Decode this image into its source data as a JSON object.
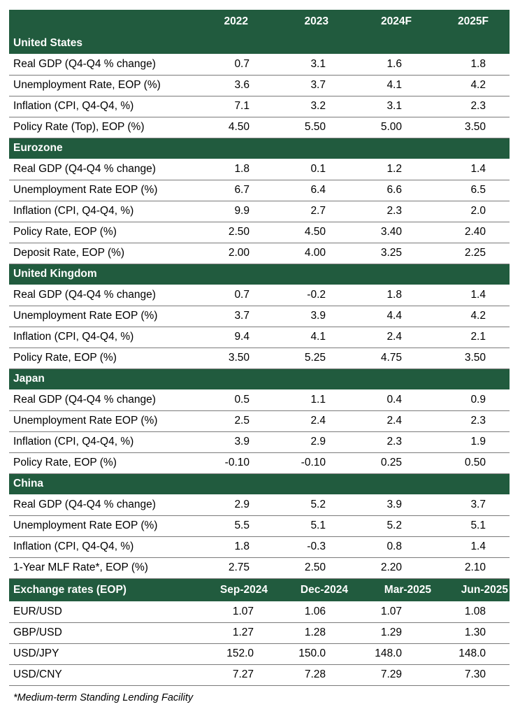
{
  "header": {
    "years": [
      "2022",
      "2023",
      "2024F",
      "2025F"
    ]
  },
  "sections": [
    {
      "name": "United States",
      "rows": [
        {
          "label": "Real GDP (Q4-Q4 % change)",
          "values": [
            "0.7",
            "3.1",
            "1.6",
            "1.8"
          ]
        },
        {
          "label": "Unemployment Rate, EOP (%)",
          "values": [
            "3.6",
            "3.7",
            "4.1",
            "4.2"
          ]
        },
        {
          "label": "Inflation (CPI, Q4-Q4, %)",
          "values": [
            "7.1",
            "3.2",
            "3.1",
            "2.3"
          ]
        },
        {
          "label": "Policy Rate (Top), EOP (%)",
          "values": [
            "4.50",
            "5.50",
            "5.00",
            "3.50"
          ]
        }
      ]
    },
    {
      "name": "Eurozone",
      "rows": [
        {
          "label": "Real GDP (Q4-Q4 % change)",
          "values": [
            "1.8",
            "0.1",
            "1.2",
            "1.4"
          ]
        },
        {
          "label": "Unemployment Rate EOP (%)",
          "values": [
            "6.7",
            "6.4",
            "6.6",
            "6.5"
          ]
        },
        {
          "label": "Inflation (CPI, Q4-Q4, %)",
          "values": [
            "9.9",
            "2.7",
            "2.3",
            "2.0"
          ]
        },
        {
          "label": "Policy Rate, EOP (%)",
          "values": [
            "2.50",
            "4.50",
            "3.40",
            "2.40"
          ]
        },
        {
          "label": "Deposit Rate, EOP (%)",
          "values": [
            "2.00",
            "4.00",
            "3.25",
            "2.25"
          ]
        }
      ]
    },
    {
      "name": "United Kingdom",
      "rows": [
        {
          "label": "Real GDP (Q4-Q4 % change)",
          "values": [
            "0.7",
            "-0.2",
            "1.8",
            "1.4"
          ]
        },
        {
          "label": "Unemployment Rate EOP (%)",
          "values": [
            "3.7",
            "3.9",
            "4.4",
            "4.2"
          ]
        },
        {
          "label": "Inflation (CPI, Q4-Q4, %)",
          "values": [
            "9.4",
            "4.1",
            "2.4",
            "2.1"
          ]
        },
        {
          "label": "Policy Rate, EOP (%)",
          "values": [
            "3.50",
            "5.25",
            "4.75",
            "3.50"
          ]
        }
      ]
    },
    {
      "name": "Japan",
      "rows": [
        {
          "label": "Real GDP (Q4-Q4 % change)",
          "values": [
            "0.5",
            "1.1",
            "0.4",
            "0.9"
          ]
        },
        {
          "label": "Unemployment Rate EOP (%)",
          "values": [
            "2.5",
            "2.4",
            "2.4",
            "2.3"
          ]
        },
        {
          "label": "Inflation (CPI, Q4-Q4, %)",
          "values": [
            "3.9",
            "2.9",
            "2.3",
            "1.9"
          ]
        },
        {
          "label": "Policy Rate, EOP (%)",
          "values": [
            "-0.10",
            "-0.10",
            "0.25",
            "0.50"
          ]
        }
      ]
    },
    {
      "name": "China",
      "rows": [
        {
          "label": "Real GDP (Q4-Q4 % change)",
          "values": [
            "2.9",
            "5.2",
            "3.9",
            "3.7"
          ]
        },
        {
          "label": "Unemployment Rate EOP (%)",
          "values": [
            "5.5",
            "5.1",
            "5.2",
            "5.1"
          ]
        },
        {
          "label": "Inflation (CPI, Q4-Q4, %)",
          "values": [
            "1.8",
            "-0.3",
            "0.8",
            "1.4"
          ]
        },
        {
          "label": "1-Year MLF Rate*, EOP (%)",
          "values": [
            "2.75",
            "2.50",
            "2.20",
            "2.10"
          ]
        }
      ]
    }
  ],
  "exchange": {
    "title": "Exchange rates (EOP)",
    "periods": [
      "Sep-2024",
      "Dec-2024",
      "Mar-2025",
      "Jun-2025"
    ],
    "rows": [
      {
        "label": "EUR/USD",
        "values": [
          "1.07",
          "1.06",
          "1.07",
          "1.08"
        ]
      },
      {
        "label": "GBP/USD",
        "values": [
          "1.27",
          "1.28",
          "1.29",
          "1.30"
        ]
      },
      {
        "label": "USD/JPY",
        "values": [
          "152.0",
          "150.0",
          "148.0",
          "148.0"
        ]
      },
      {
        "label": "USD/CNY",
        "values": [
          "7.27",
          "7.28",
          "7.29",
          "7.30"
        ]
      }
    ]
  },
  "footnote": "*Medium-term Standing Lending Facility",
  "colors": {
    "header_green": "#215b3e",
    "header_text": "#ffffff",
    "rule_gray": "#7a7a7a"
  }
}
